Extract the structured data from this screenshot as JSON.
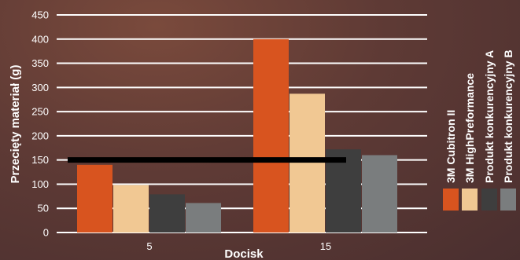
{
  "chart_data": {
    "type": "bar",
    "xlabel": "Docisk",
    "ylabel": "Przecięty materiał (g)",
    "ylim": [
      0,
      450
    ],
    "yticks": [
      0,
      50,
      100,
      150,
      200,
      250,
      300,
      350,
      400,
      450
    ],
    "categories": [
      "5",
      "15"
    ],
    "grid": true,
    "legend_position": "right",
    "series": [
      {
        "name": "3M Cubitron II",
        "values": [
          140,
          400
        ],
        "color": "#d8541f"
      },
      {
        "name": "3M HighPreformance",
        "values": [
          98,
          287
        ],
        "color": "#f1c893"
      },
      {
        "name": "Produkt konkurencyjny A",
        "values": [
          79,
          172
        ],
        "color": "#3e3e3e"
      },
      {
        "name": "Produkt konkurencyjny B",
        "values": [
          61,
          160
        ],
        "color": "#7a7d7e"
      }
    ],
    "annotations": [
      {
        "type": "horizontal-line",
        "y": 150,
        "color": "#000000"
      }
    ]
  }
}
